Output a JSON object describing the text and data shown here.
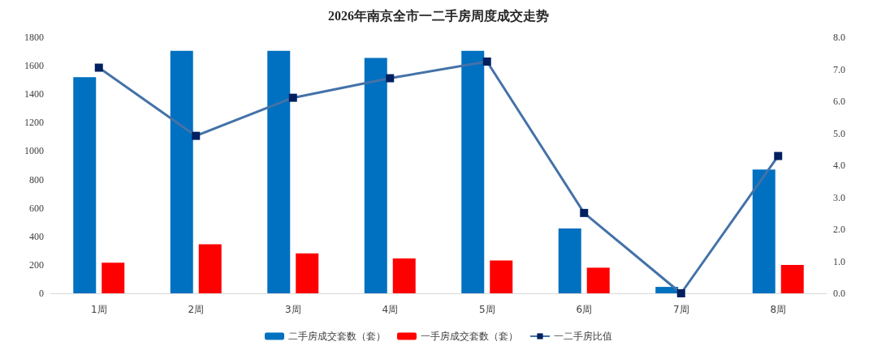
{
  "chart_data": {
    "type": "bar",
    "title": "2026年南京全市一二手房周度成交走势",
    "categories": [
      "1周",
      "2周",
      "3周",
      "4周",
      "5周",
      "6周",
      "7周",
      "8周"
    ],
    "series": [
      {
        "name": "二手房成交套数（套）",
        "color": "#0070c0",
        "values": [
          1520,
          1705,
          1705,
          1655,
          1705,
          455,
          45,
          870
        ]
      },
      {
        "name": "一手房成交套数（套）",
        "color": "#ff0000",
        "values": [
          215,
          345,
          280,
          245,
          230,
          180,
          null,
          200
        ]
      },
      {
        "name": "一二手房比值",
        "type": "line",
        "axis": "y2",
        "color": "#4472a8",
        "marker": "square",
        "values": [
          7.05,
          4.92,
          6.11,
          6.72,
          7.24,
          2.51,
          0,
          4.29
        ]
      }
    ],
    "ylim": [
      0,
      1800
    ],
    "yticks": [
      0,
      200,
      400,
      600,
      800,
      1000,
      1200,
      1400,
      1600,
      1800
    ],
    "y2lim": [
      0,
      8
    ],
    "y2ticks": [
      {
        "value": 0,
        "label": "0.0"
      },
      {
        "value": 1,
        "label": "1.0"
      },
      {
        "value": 2,
        "label": "2.0"
      },
      {
        "value": 3,
        "label": "3.0"
      },
      {
        "value": 4,
        "label": "4.0"
      },
      {
        "value": 5,
        "label": "5.0"
      },
      {
        "value": 6,
        "label": "6.0"
      },
      {
        "value": 7,
        "label": "7.0"
      },
      {
        "value": 8,
        "label": "8.0"
      }
    ],
    "grid": false,
    "legend": "bottom"
  }
}
